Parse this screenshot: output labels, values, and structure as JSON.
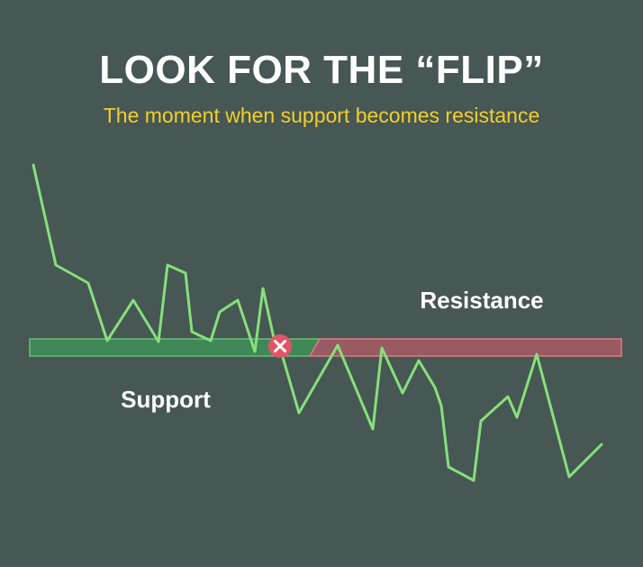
{
  "header": {
    "title": "LOOK FOR THE “FLIP”",
    "subtitle": "The moment when support becomes resistance"
  },
  "diagram": {
    "support_label": "Support",
    "resistance_label": "Resistance",
    "flip_marker_icon": "x-icon",
    "colors": {
      "background": "#475753",
      "price_line": "#86e07c",
      "support_zone": "#3f8f58",
      "resistance_zone": "#a85b64",
      "flip_marker": "#e25566",
      "subtitle": "#f2cf2c"
    }
  }
}
